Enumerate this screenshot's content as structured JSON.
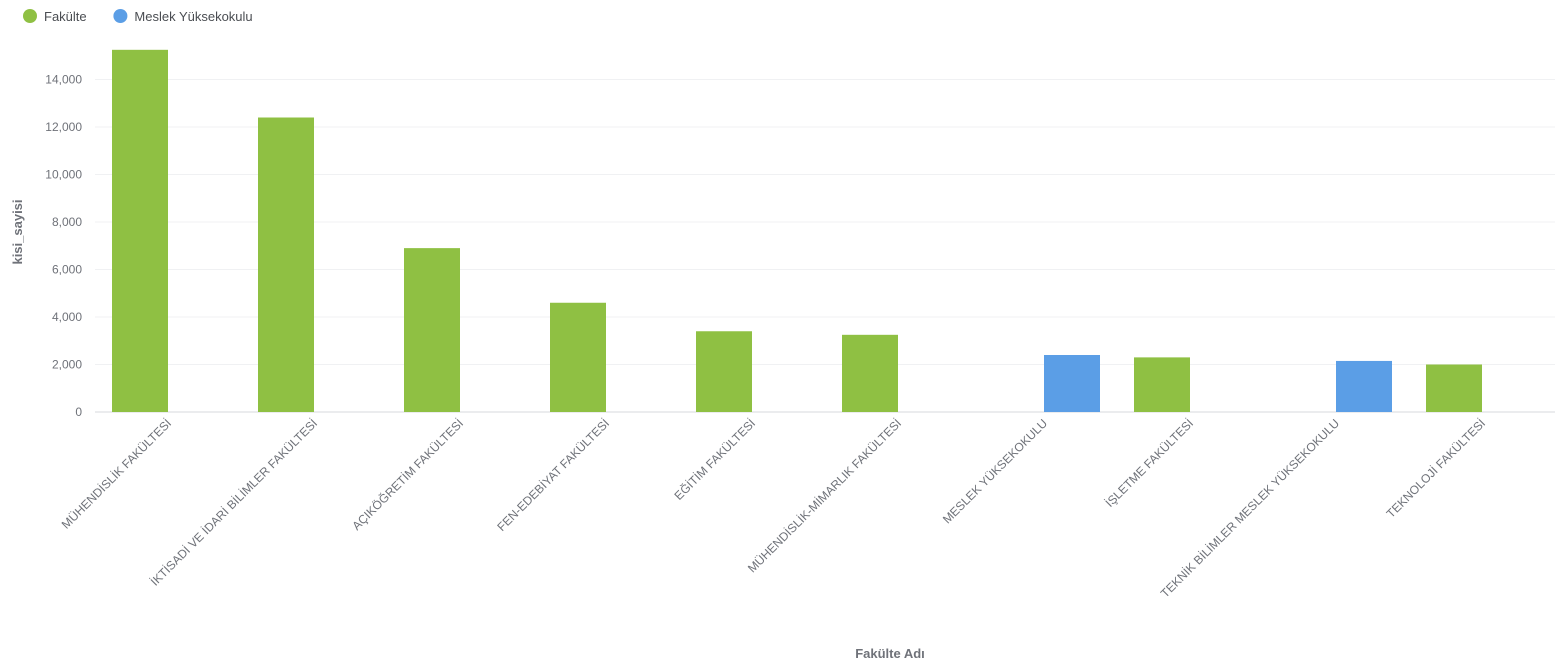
{
  "chart_data": {
    "type": "bar",
    "xlabel": "Fakülte Adı",
    "ylabel": "kisi_sayisi",
    "ylim": [
      0,
      16000
    ],
    "yticks": [
      0,
      2000,
      4000,
      6000,
      8000,
      10000,
      12000,
      14000
    ],
    "ytick_labels": [
      "0",
      "2,000",
      "4,000",
      "6,000",
      "8,000",
      "10,000",
      "12,000",
      "14,000"
    ],
    "grid": true,
    "legend_position": "top-left",
    "categories": [
      "MÜHENDİSLİK FAKÜLTESİ",
      "İKTİSADİ VE İDARİ BİLİMLER FAKÜLTESİ",
      "AÇIKÖĞRETİM FAKÜLTESİ",
      "FEN-EDEBİYAT FAKÜLTESİ",
      "EĞİTİM FAKÜLTESİ",
      "MÜHENDİSLİK-MİMARLIK FAKÜLTESİ",
      "MESLEK YÜKSEKOKULU",
      "İŞLETME FAKÜLTESİ",
      "TEKNİK BİLİMLER MESLEK YÜKSEKOKULU",
      "TEKNOLOJİ FAKÜLTESİ"
    ],
    "series": [
      {
        "name": "Fakülte",
        "color": "#8fc043",
        "values": [
          15250,
          12400,
          6900,
          4600,
          3400,
          3250,
          null,
          2300,
          null,
          2000
        ]
      },
      {
        "name": "Meslek Yüksekokulu",
        "color": "#5b9ee6",
        "values": [
          null,
          null,
          null,
          null,
          null,
          null,
          2400,
          null,
          2150,
          null
        ]
      }
    ]
  }
}
